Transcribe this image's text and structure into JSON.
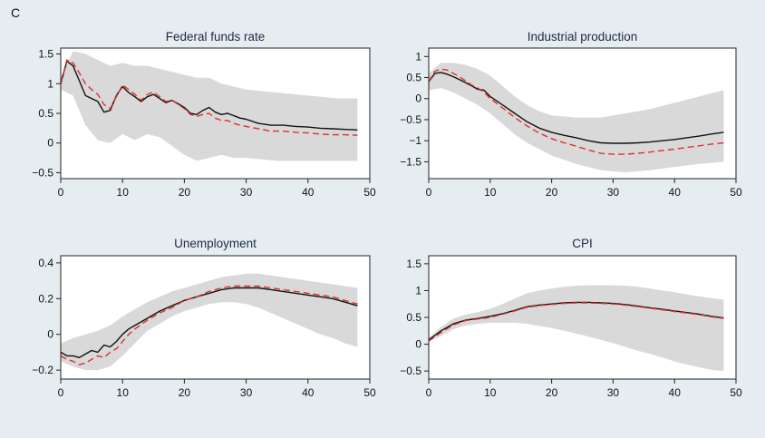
{
  "figure": {
    "panel_letter": "C"
  },
  "chart_data": [
    {
      "type": "line",
      "title": "Federal funds rate",
      "xlim": [
        0,
        50
      ],
      "ylim": [
        -0.6,
        1.6
      ],
      "xticks": [
        0,
        10,
        20,
        30,
        40,
        50
      ],
      "yticks": [
        -0.5,
        0,
        0.5,
        1,
        1.5
      ],
      "ytick_labels": [
        "−0.5",
        "0",
        "0.5",
        "1",
        "1.5"
      ],
      "series": [
        {
          "style": "solid",
          "color": "#111111",
          "x": [
            0,
            1,
            2,
            3,
            4,
            5,
            6,
            7,
            8,
            9,
            10,
            11,
            12,
            13,
            14,
            15,
            16,
            17,
            18,
            19,
            20,
            21,
            22,
            23,
            24,
            25,
            26,
            27,
            28,
            29,
            30,
            32,
            34,
            36,
            38,
            40,
            42,
            44,
            46,
            48
          ],
          "y": [
            1.0,
            1.38,
            1.3,
            1.05,
            0.8,
            0.75,
            0.7,
            0.52,
            0.55,
            0.8,
            0.95,
            0.85,
            0.78,
            0.7,
            0.78,
            0.82,
            0.75,
            0.68,
            0.72,
            0.66,
            0.6,
            0.5,
            0.48,
            0.55,
            0.6,
            0.52,
            0.48,
            0.5,
            0.46,
            0.42,
            0.4,
            0.33,
            0.3,
            0.3,
            0.28,
            0.27,
            0.25,
            0.24,
            0.23,
            0.22
          ]
        },
        {
          "style": "dashed",
          "color": "#e03030",
          "x": [
            0,
            1,
            2,
            3,
            4,
            5,
            6,
            7,
            8,
            9,
            10,
            11,
            12,
            13,
            14,
            15,
            16,
            17,
            18,
            19,
            20,
            21,
            22,
            23,
            24,
            25,
            26,
            27,
            28,
            29,
            30,
            32,
            34,
            36,
            38,
            40,
            42,
            44,
            46,
            48
          ],
          "y": [
            1.0,
            1.4,
            1.35,
            1.18,
            1.0,
            0.9,
            0.82,
            0.65,
            0.58,
            0.78,
            0.98,
            0.9,
            0.82,
            0.72,
            0.82,
            0.86,
            0.78,
            0.7,
            0.72,
            0.65,
            0.58,
            0.48,
            0.45,
            0.48,
            0.5,
            0.42,
            0.38,
            0.38,
            0.33,
            0.3,
            0.28,
            0.24,
            0.2,
            0.2,
            0.18,
            0.17,
            0.15,
            0.14,
            0.14,
            0.13
          ]
        }
      ],
      "band": {
        "x": [
          0,
          2,
          4,
          6,
          8,
          10,
          12,
          14,
          16,
          18,
          20,
          22,
          24,
          26,
          28,
          30,
          35,
          40,
          45,
          48
        ],
        "lower": [
          0.9,
          0.8,
          0.3,
          0.05,
          0.0,
          0.15,
          0.05,
          0.15,
          0.1,
          -0.05,
          -0.2,
          -0.3,
          -0.25,
          -0.2,
          -0.25,
          -0.25,
          -0.3,
          -0.3,
          -0.3,
          -0.3
        ],
        "upper": [
          1.1,
          1.55,
          1.5,
          1.4,
          1.3,
          1.35,
          1.3,
          1.3,
          1.25,
          1.2,
          1.15,
          1.1,
          1.1,
          1.0,
          0.95,
          0.9,
          0.85,
          0.8,
          0.75,
          0.75
        ]
      }
    },
    {
      "type": "line",
      "title": "Industrial production",
      "xlim": [
        0,
        50
      ],
      "ylim": [
        -1.9,
        1.2
      ],
      "xticks": [
        0,
        10,
        20,
        30,
        40,
        50
      ],
      "yticks": [
        -1.5,
        -1,
        -0.5,
        0,
        0.5,
        1
      ],
      "ytick_labels": [
        "−1.5",
        "−1",
        "−0.5",
        "0",
        "0.5",
        "1"
      ],
      "series": [
        {
          "style": "solid",
          "color": "#111111",
          "x": [
            0,
            1,
            2,
            3,
            4,
            5,
            6,
            7,
            8,
            9,
            10,
            12,
            14,
            16,
            18,
            20,
            22,
            24,
            26,
            28,
            30,
            32,
            34,
            36,
            38,
            40,
            42,
            44,
            46,
            48
          ],
          "y": [
            0.4,
            0.6,
            0.62,
            0.58,
            0.52,
            0.45,
            0.38,
            0.3,
            0.22,
            0.2,
            0.05,
            -0.15,
            -0.35,
            -0.55,
            -0.7,
            -0.8,
            -0.87,
            -0.93,
            -1.0,
            -1.05,
            -1.06,
            -1.06,
            -1.05,
            -1.03,
            -1.0,
            -0.97,
            -0.93,
            -0.89,
            -0.84,
            -0.8
          ]
        },
        {
          "style": "dashed",
          "color": "#e03030",
          "x": [
            0,
            1,
            2,
            3,
            4,
            5,
            6,
            7,
            8,
            9,
            10,
            12,
            14,
            16,
            18,
            20,
            22,
            24,
            26,
            28,
            30,
            32,
            34,
            36,
            38,
            40,
            42,
            44,
            46,
            48
          ],
          "y": [
            0.4,
            0.65,
            0.7,
            0.68,
            0.6,
            0.52,
            0.42,
            0.32,
            0.25,
            0.15,
            0.0,
            -0.22,
            -0.45,
            -0.65,
            -0.82,
            -0.95,
            -1.05,
            -1.13,
            -1.22,
            -1.3,
            -1.32,
            -1.32,
            -1.3,
            -1.27,
            -1.23,
            -1.2,
            -1.16,
            -1.12,
            -1.08,
            -1.05
          ]
        }
      ],
      "band": {
        "x": [
          0,
          2,
          4,
          6,
          8,
          10,
          12,
          14,
          16,
          18,
          20,
          24,
          28,
          32,
          36,
          40,
          44,
          48
        ],
        "lower": [
          0.2,
          0.25,
          0.15,
          0.0,
          -0.15,
          -0.35,
          -0.6,
          -0.85,
          -1.05,
          -1.2,
          -1.35,
          -1.55,
          -1.7,
          -1.75,
          -1.7,
          -1.62,
          -1.55,
          -1.5
        ],
        "upper": [
          0.6,
          0.85,
          0.85,
          0.8,
          0.7,
          0.55,
          0.3,
          0.05,
          -0.15,
          -0.3,
          -0.4,
          -0.45,
          -0.45,
          -0.35,
          -0.25,
          -0.1,
          0.05,
          0.2
        ]
      }
    },
    {
      "type": "line",
      "title": "Unemployment",
      "xlim": [
        0,
        50
      ],
      "ylim": [
        -0.25,
        0.44
      ],
      "xticks": [
        0,
        10,
        20,
        30,
        40,
        50
      ],
      "yticks": [
        -0.2,
        0,
        0.2,
        0.4
      ],
      "ytick_labels": [
        "−0.2",
        "0",
        "0.2",
        "0.4"
      ],
      "series": [
        {
          "style": "solid",
          "color": "#111111",
          "x": [
            0,
            1,
            2,
            3,
            4,
            5,
            6,
            7,
            8,
            9,
            10,
            11,
            12,
            14,
            16,
            18,
            20,
            22,
            24,
            26,
            28,
            30,
            32,
            34,
            36,
            38,
            40,
            42,
            44,
            46,
            48
          ],
          "y": [
            -0.1,
            -0.12,
            -0.12,
            -0.13,
            -0.11,
            -0.09,
            -0.1,
            -0.06,
            -0.07,
            -0.04,
            0.0,
            0.03,
            0.05,
            0.09,
            0.13,
            0.16,
            0.19,
            0.21,
            0.23,
            0.25,
            0.26,
            0.26,
            0.26,
            0.25,
            0.24,
            0.23,
            0.22,
            0.21,
            0.2,
            0.18,
            0.16
          ]
        },
        {
          "style": "dashed",
          "color": "#e03030",
          "x": [
            0,
            1,
            2,
            3,
            4,
            5,
            6,
            7,
            8,
            9,
            10,
            11,
            12,
            14,
            16,
            18,
            20,
            22,
            24,
            26,
            28,
            30,
            32,
            34,
            36,
            38,
            40,
            42,
            44,
            46,
            48
          ],
          "y": [
            -0.12,
            -0.14,
            -0.15,
            -0.17,
            -0.16,
            -0.14,
            -0.12,
            -0.13,
            -0.1,
            -0.08,
            -0.04,
            0.0,
            0.03,
            0.08,
            0.12,
            0.15,
            0.19,
            0.21,
            0.24,
            0.26,
            0.27,
            0.27,
            0.27,
            0.26,
            0.25,
            0.24,
            0.23,
            0.22,
            0.21,
            0.19,
            0.17
          ]
        }
      ],
      "band": {
        "x": [
          0,
          2,
          4,
          6,
          8,
          10,
          12,
          14,
          16,
          18,
          20,
          22,
          24,
          26,
          28,
          30,
          32,
          34,
          36,
          38,
          40,
          42,
          44,
          46,
          48
        ],
        "lower": [
          -0.15,
          -0.18,
          -0.2,
          -0.2,
          -0.18,
          -0.12,
          -0.05,
          0.02,
          0.06,
          0.1,
          0.13,
          0.15,
          0.17,
          0.18,
          0.18,
          0.17,
          0.15,
          0.12,
          0.09,
          0.06,
          0.03,
          0.0,
          -0.02,
          -0.05,
          -0.07
        ],
        "upper": [
          -0.05,
          -0.02,
          0.0,
          0.02,
          0.05,
          0.1,
          0.14,
          0.18,
          0.21,
          0.24,
          0.26,
          0.28,
          0.3,
          0.32,
          0.33,
          0.34,
          0.34,
          0.33,
          0.32,
          0.31,
          0.3,
          0.29,
          0.28,
          0.27,
          0.26
        ]
      }
    },
    {
      "type": "line",
      "title": "CPI",
      "xlim": [
        0,
        50
      ],
      "ylim": [
        -0.65,
        1.65
      ],
      "xticks": [
        0,
        10,
        20,
        30,
        40,
        50
      ],
      "yticks": [
        -0.5,
        0,
        0.5,
        1,
        1.5
      ],
      "ytick_labels": [
        "−0.5",
        "0",
        "0.5",
        "1",
        "1.5"
      ],
      "series": [
        {
          "style": "solid",
          "color": "#111111",
          "x": [
            0,
            2,
            4,
            6,
            8,
            10,
            12,
            14,
            16,
            18,
            20,
            22,
            24,
            26,
            28,
            30,
            32,
            34,
            36,
            38,
            40,
            42,
            44,
            46,
            48
          ],
          "y": [
            0.08,
            0.25,
            0.38,
            0.45,
            0.48,
            0.52,
            0.57,
            0.63,
            0.7,
            0.73,
            0.75,
            0.77,
            0.78,
            0.78,
            0.77,
            0.76,
            0.74,
            0.71,
            0.68,
            0.65,
            0.62,
            0.59,
            0.56,
            0.52,
            0.49
          ]
        },
        {
          "style": "dashed",
          "color": "#e03030",
          "x": [
            0,
            2,
            4,
            6,
            8,
            10,
            12,
            14,
            16,
            18,
            20,
            22,
            24,
            26,
            28,
            30,
            32,
            34,
            36,
            38,
            40,
            42,
            44,
            46,
            48
          ],
          "y": [
            0.06,
            0.22,
            0.36,
            0.44,
            0.47,
            0.5,
            0.56,
            0.62,
            0.69,
            0.72,
            0.74,
            0.76,
            0.77,
            0.77,
            0.76,
            0.75,
            0.73,
            0.7,
            0.67,
            0.64,
            0.61,
            0.58,
            0.55,
            0.51,
            0.48
          ]
        }
      ],
      "band": {
        "x": [
          0,
          2,
          4,
          6,
          8,
          10,
          12,
          14,
          16,
          18,
          20,
          22,
          24,
          26,
          28,
          30,
          32,
          34,
          36,
          38,
          40,
          42,
          44,
          46,
          48
        ],
        "lower": [
          0.05,
          0.15,
          0.28,
          0.35,
          0.38,
          0.4,
          0.4,
          0.4,
          0.38,
          0.34,
          0.3,
          0.25,
          0.2,
          0.14,
          0.08,
          0.02,
          -0.05,
          -0.12,
          -0.18,
          -0.25,
          -0.32,
          -0.38,
          -0.43,
          -0.48,
          -0.5
        ],
        "upper": [
          0.12,
          0.32,
          0.48,
          0.55,
          0.6,
          0.66,
          0.75,
          0.85,
          0.95,
          1.0,
          1.04,
          1.07,
          1.09,
          1.1,
          1.1,
          1.1,
          1.09,
          1.07,
          1.04,
          1.0,
          0.97,
          0.93,
          0.89,
          0.86,
          0.83
        ]
      }
    }
  ]
}
